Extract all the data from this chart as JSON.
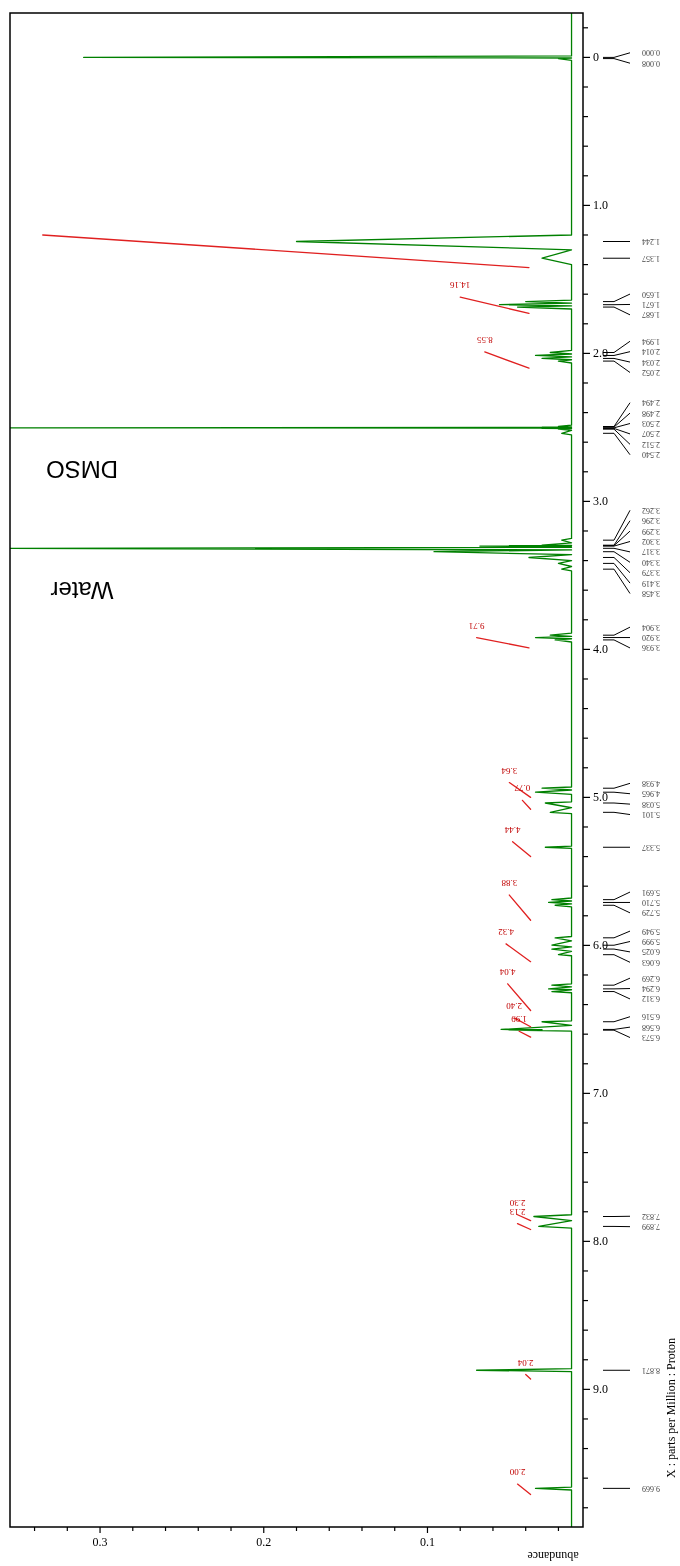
{
  "chart_data": {
    "type": "line",
    "xlabel": "abundance",
    "ylabel": "X : parts per Million : Proton",
    "xlim": [
      0.355,
      0.005
    ],
    "ylim": [
      9.93,
      -0.3
    ],
    "xticks": [
      {
        "value": 0.02,
        "label": null
      },
      {
        "value": 0.04,
        "label": null
      },
      {
        "value": 0.06,
        "label": null
      },
      {
        "value": 0.08,
        "label": null
      },
      {
        "value": 0.1,
        "label": "0.1"
      },
      {
        "value": 0.12,
        "label": null
      },
      {
        "value": 0.14,
        "label": null
      },
      {
        "value": 0.16,
        "label": null
      },
      {
        "value": 0.18,
        "label": null
      },
      {
        "value": 0.2,
        "label": "0.2"
      },
      {
        "value": 0.22,
        "label": null
      },
      {
        "value": 0.24,
        "label": null
      },
      {
        "value": 0.26,
        "label": null
      },
      {
        "value": 0.28,
        "label": null
      },
      {
        "value": 0.3,
        "label": "0.3"
      },
      {
        "value": 0.32,
        "label": null
      },
      {
        "value": 0.34,
        "label": null
      }
    ],
    "yticks": [
      {
        "value": -0.2,
        "label": null
      },
      {
        "value": 0,
        "label": "0"
      },
      {
        "value": 0.2,
        "label": null
      },
      {
        "value": 0.4,
        "label": null
      },
      {
        "value": 0.6,
        "label": null
      },
      {
        "value": 0.8,
        "label": null
      },
      {
        "value": 1,
        "label": "1.0"
      },
      {
        "value": 1.2,
        "label": null
      },
      {
        "value": 1.4,
        "label": null
      },
      {
        "value": 1.6,
        "label": null
      },
      {
        "value": 1.8,
        "label": null
      },
      {
        "value": 2,
        "label": "2.0"
      },
      {
        "value": 2.2,
        "label": null
      },
      {
        "value": 2.4,
        "label": null
      },
      {
        "value": 2.6,
        "label": null
      },
      {
        "value": 2.8,
        "label": null
      },
      {
        "value": 3,
        "label": "3.0"
      },
      {
        "value": 3.2,
        "label": null
      },
      {
        "value": 3.4,
        "label": null
      },
      {
        "value": 3.6,
        "label": null
      },
      {
        "value": 3.8,
        "label": null
      },
      {
        "value": 4,
        "label": "4.0"
      },
      {
        "value": 4.2,
        "label": null
      },
      {
        "value": 4.4,
        "label": null
      },
      {
        "value": 4.6,
        "label": null
      },
      {
        "value": 4.8,
        "label": null
      },
      {
        "value": 5,
        "label": "5.0"
      },
      {
        "value": 5.2,
        "label": null
      },
      {
        "value": 5.4,
        "label": null
      },
      {
        "value": 5.6,
        "label": null
      },
      {
        "value": 5.8,
        "label": null
      },
      {
        "value": 6,
        "label": "6.0"
      },
      {
        "value": 6.2,
        "label": null
      },
      {
        "value": 6.4,
        "label": null
      },
      {
        "value": 6.6,
        "label": null
      },
      {
        "value": 6.8,
        "label": null
      },
      {
        "value": 7,
        "label": "7.0"
      },
      {
        "value": 7.2,
        "label": null
      },
      {
        "value": 7.4,
        "label": null
      },
      {
        "value": 7.6,
        "label": null
      },
      {
        "value": 7.8,
        "label": null
      },
      {
        "value": 8,
        "label": "8.0"
      },
      {
        "value": 8.2,
        "label": null
      },
      {
        "value": 8.4,
        "label": null
      },
      {
        "value": 8.6,
        "label": null
      },
      {
        "value": 8.8,
        "label": null
      },
      {
        "value": 9,
        "label": "9.0"
      },
      {
        "value": 9.2,
        "label": null
      },
      {
        "value": 9.4,
        "label": null
      },
      {
        "value": 9.6,
        "label": null
      },
      {
        "value": 9.8,
        "label": null
      }
    ],
    "series": [
      {
        "color": "#008000",
        "values": [
          -0.3,
          -0.01,
          0,
          0.004,
          0.008,
          0.02,
          1.2,
          1.244,
          1.3,
          1.357,
          1.4,
          1.64,
          1.65,
          1.66,
          1.671,
          1.679,
          1.687,
          1.7,
          1.98,
          1.994,
          2.004,
          2.014,
          2.024,
          2.034,
          2.043,
          2.052,
          2.065,
          2.485,
          2.494,
          2.496,
          2.498,
          2.5,
          2.503,
          2.505,
          2.507,
          2.509,
          2.512,
          2.52,
          2.54,
          2.55,
          3.25,
          3.262,
          3.28,
          3.296,
          3.2975,
          3.299,
          3.3005,
          3.302,
          3.31,
          3.317,
          3.328,
          3.34,
          3.36,
          3.379,
          3.4,
          3.419,
          3.44,
          3.458,
          3.47,
          3.89,
          3.904,
          3.912,
          3.92,
          3.928,
          3.936,
          3.95,
          4.93,
          4.938,
          4.95,
          4.965,
          4.98,
          5.03,
          5.038,
          5.07,
          5.101,
          5.11,
          5.33,
          5.337,
          5.345,
          5.68,
          5.691,
          5.7,
          5.71,
          5.72,
          5.729,
          5.74,
          5.94,
          5.949,
          5.97,
          5.999,
          6.01,
          6.025,
          6.04,
          6.063,
          6.07,
          6.26,
          6.269,
          6.28,
          6.294,
          6.3,
          6.312,
          6.32,
          6.51,
          6.516,
          6.54,
          6.568,
          6.57,
          6.573,
          6.58,
          7.82,
          7.832,
          7.86,
          7.899,
          7.91,
          8.86,
          8.871,
          8.88,
          9.66,
          9.669,
          9.68,
          9.93
        ],
        "x": [
          0.012,
          0.012,
          0.31,
          0.012,
          0.02,
          0.012,
          0.012,
          0.18,
          0.012,
          0.03,
          0.012,
          0.012,
          0.04,
          0.012,
          0.056,
          0.012,
          0.045,
          0.012,
          0.012,
          0.025,
          0.012,
          0.034,
          0.012,
          0.03,
          0.012,
          0.02,
          0.012,
          0.012,
          0.02,
          0.012,
          0.03,
          0.012,
          0.355,
          0.012,
          0.03,
          0.012,
          0.02,
          0.012,
          0.018,
          0.012,
          0.012,
          0.018,
          0.012,
          0.03,
          0.012,
          0.05,
          0.012,
          0.068,
          0.012,
          0.355,
          0.012,
          0.096,
          0.012,
          0.038,
          0.012,
          0.02,
          0.012,
          0.018,
          0.012,
          0.012,
          0.025,
          0.012,
          0.034,
          0.012,
          0.022,
          0.012,
          0.012,
          0.03,
          0.012,
          0.034,
          0.012,
          0.012,
          0.028,
          0.012,
          0.025,
          0.012,
          0.012,
          0.028,
          0.012,
          0.012,
          0.024,
          0.012,
          0.026,
          0.012,
          0.022,
          0.012,
          0.012,
          0.022,
          0.012,
          0.024,
          0.012,
          0.024,
          0.012,
          0.02,
          0.012,
          0.012,
          0.024,
          0.012,
          0.026,
          0.012,
          0.024,
          0.012,
          0.012,
          0.03,
          0.012,
          0.055,
          0.03,
          0.05,
          0.012,
          0.012,
          0.035,
          0.012,
          0.032,
          0.012,
          0.012,
          0.07,
          0.012,
          0.012,
          0.034,
          0.012,
          0.012
        ]
      },
      {
        "color": "#e02020",
        "values": [
          1.2,
          1.42
        ],
        "x": [
          0.335,
          0.038
        ]
      },
      {
        "color": "#e02020",
        "values": [
          1.62,
          1.73
        ],
        "x": [
          0.08,
          0.038
        ]
      },
      {
        "color": "#e02020",
        "values": [
          1.99,
          2.1
        ],
        "x": [
          0.065,
          0.038
        ]
      },
      {
        "color": "#e02020",
        "values": [
          3.92,
          3.99
        ],
        "x": [
          0.07,
          0.038
        ]
      },
      {
        "color": "#e02020",
        "values": [
          4.9,
          5.0
        ],
        "x": [
          0.05,
          0.037
        ]
      },
      {
        "color": "#e02020",
        "values": [
          5.02,
          5.08
        ],
        "x": [
          0.042,
          0.037
        ]
      },
      {
        "color": "#e02020",
        "values": [
          5.3,
          5.4
        ],
        "x": [
          0.048,
          0.037
        ]
      },
      {
        "color": "#e02020",
        "values": [
          5.66,
          5.83
        ],
        "x": [
          0.05,
          0.037
        ]
      },
      {
        "color": "#e02020",
        "values": [
          5.99,
          6.11
        ],
        "x": [
          0.052,
          0.037
        ]
      },
      {
        "color": "#e02020",
        "values": [
          6.26,
          6.44
        ],
        "x": [
          0.051,
          0.037
        ]
      },
      {
        "color": "#e02020",
        "values": [
          6.49,
          6.55
        ],
        "x": [
          0.047,
          0.037
        ]
      },
      {
        "color": "#e02020",
        "values": [
          6.58,
          6.62
        ],
        "x": [
          0.044,
          0.037
        ]
      },
      {
        "color": "#e02020",
        "values": [
          7.82,
          7.86
        ],
        "x": [
          0.045,
          0.037
        ]
      },
      {
        "color": "#e02020",
        "values": [
          7.88,
          7.92
        ],
        "x": [
          0.045,
          0.037
        ]
      },
      {
        "color": "#e02020",
        "values": [
          8.9,
          8.93
        ],
        "x": [
          0.04,
          0.037
        ]
      },
      {
        "color": "#e02020",
        "values": [
          9.64,
          9.71
        ],
        "x": [
          0.045,
          0.037
        ]
      }
    ],
    "annotations": [
      "DMSO",
      "Water",
      {
        "text": "14.16",
        "x": 0.08,
        "y": 1.62
      },
      {
        "text": "8.55",
        "x": 0.065,
        "y": 1.99
      },
      {
        "text": "9.71",
        "x": 0.07,
        "y": 3.92
      },
      {
        "text": "3.64",
        "x": 0.05,
        "y": 4.9
      },
      {
        "text": "0.77",
        "x": 0.042,
        "y": 5.02
      },
      {
        "text": "4.44",
        "x": 0.048,
        "y": 5.3
      },
      {
        "text": "3.88",
        "x": 0.05,
        "y": 5.66
      },
      {
        "text": "4.32",
        "x": 0.052,
        "y": 5.99
      },
      {
        "text": "4.04",
        "x": 0.051,
        "y": 6.26
      },
      {
        "text": "2.40",
        "x": 0.047,
        "y": 6.49
      },
      {
        "text": "1.99",
        "x": 0.044,
        "y": 6.58
      },
      {
        "text": "2.30",
        "x": 0.045,
        "y": 7.82
      },
      {
        "text": "2.13",
        "x": 0.045,
        "y": 7.88
      },
      {
        "text": "2.04",
        "x": 0.04,
        "y": 8.9
      },
      {
        "text": "2.00",
        "x": 0.045,
        "y": 9.64
      },
      "0.000",
      "0.008",
      "1.244",
      "1.357",
      "1.650",
      "1.671",
      "1.687",
      "1.994",
      "2.014",
      "2.034",
      "2.052",
      "2.494",
      "2.498",
      "2.503",
      "2.507",
      "2.512",
      "2.540",
      "3.262",
      "3.296",
      "3.299",
      "3.302",
      "3.317",
      "3.340",
      "3.379",
      "3.419",
      "3.458",
      "3.904",
      "3.920",
      "3.936",
      "4.938",
      "4.965",
      "5.038",
      "5.101",
      "5.337",
      "5.691",
      "5.710",
      "5.729",
      "5.949",
      "5.999",
      "6.025",
      "6.063",
      "6.269",
      "6.294",
      "6.312",
      "6.516",
      "6.568",
      "6.573",
      "7.832",
      "7.899",
      "8.871",
      "9.669"
    ]
  }
}
